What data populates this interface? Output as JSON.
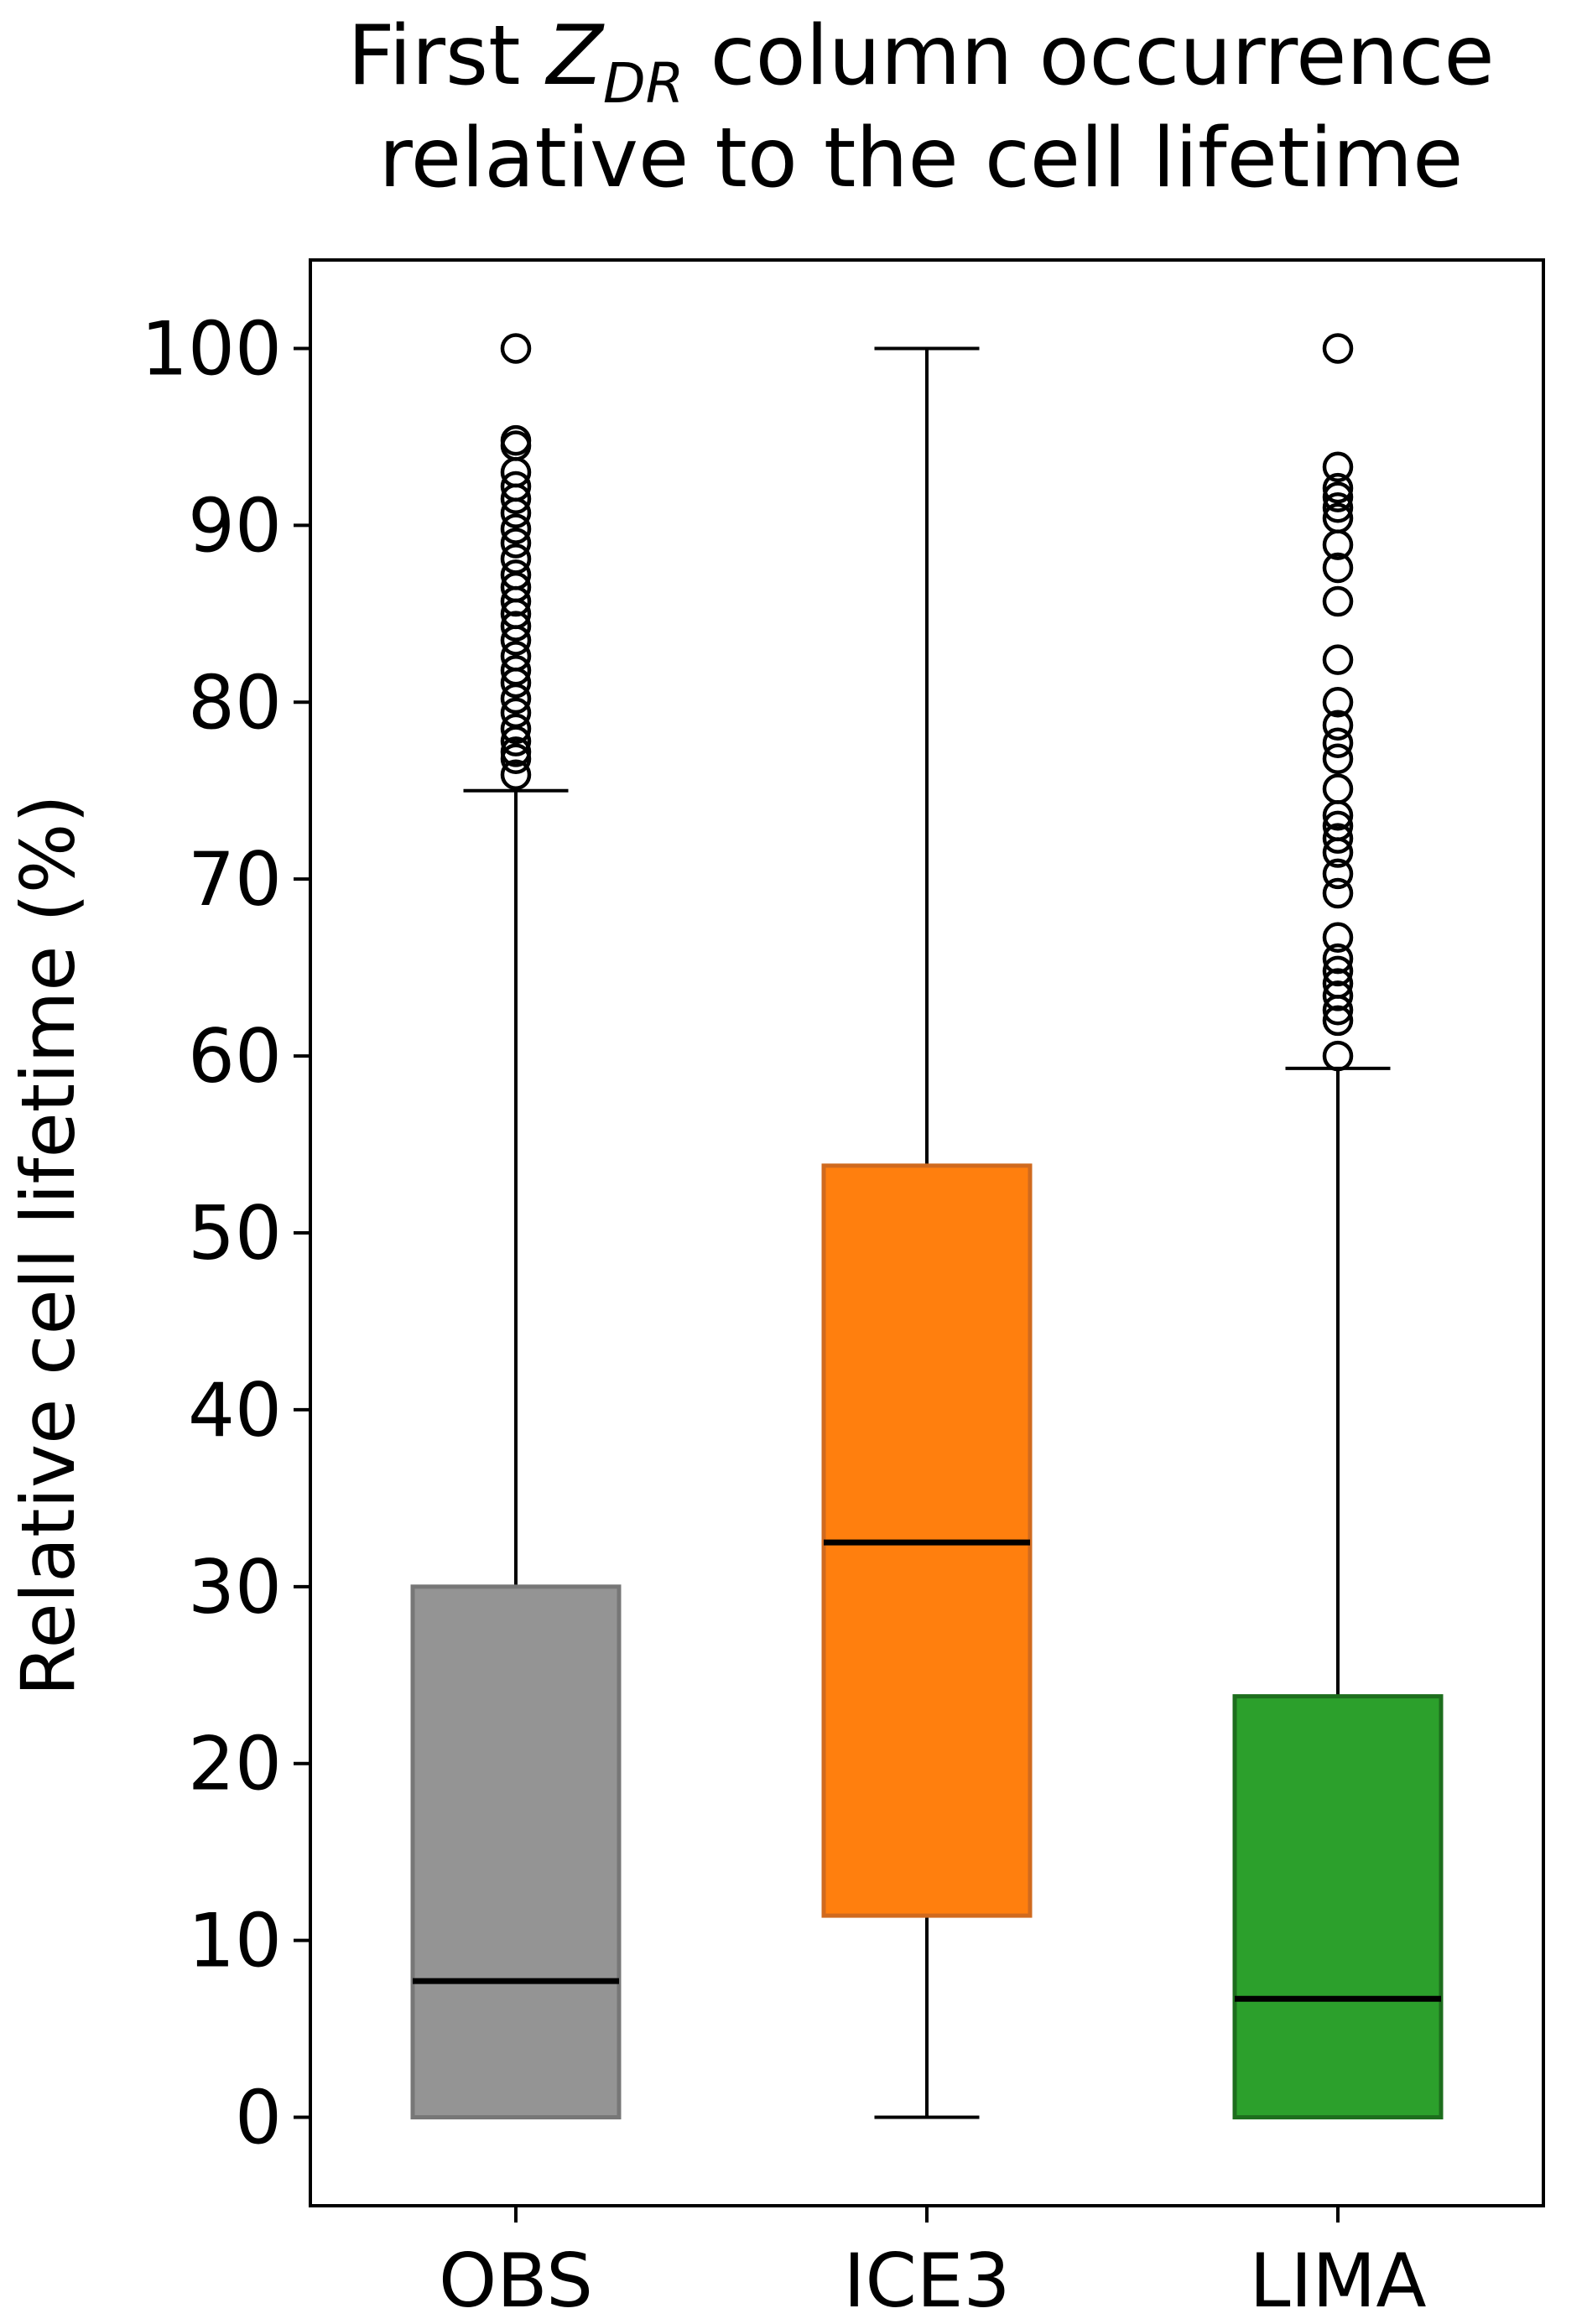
{
  "chart_data": {
    "type": "box",
    "title_line1": {
      "before": "First ",
      "z": "Z",
      "sub": "DR",
      "after": " column occurrence"
    },
    "title_line2": "relative to the cell lifetime",
    "xlabel": "",
    "ylabel": "Relative cell lifetime (%)",
    "ylim": [
      -5,
      105
    ],
    "yticks": [
      "0",
      "10",
      "20",
      "30",
      "40",
      "50",
      "60",
      "70",
      "80",
      "90",
      "100"
    ],
    "categories": [
      "OBS",
      "ICE3",
      "LIMA"
    ],
    "series": [
      {
        "name": "OBS",
        "color": "#949494",
        "edge": "#777777",
        "q1": 0,
        "median": 7.7,
        "q3": 30.0,
        "whisker_low": 0,
        "whisker_high": 75.0,
        "outliers": [
          75.9,
          76.8,
          77.2,
          77.8,
          78.5,
          79.4,
          80.2,
          81.1,
          81.8,
          82.6,
          83.5,
          84.3,
          85.0,
          85.7,
          86.5,
          87.2,
          88.1,
          89.0,
          89.8,
          90.7,
          91.5,
          92.2,
          93.0,
          94.5,
          94.8,
          100.0
        ]
      },
      {
        "name": "ICE3",
        "color": "#ff7f0e",
        "edge": "#d06a1e",
        "q1": 11.4,
        "median": 32.5,
        "q3": 53.8,
        "whisker_low": 0,
        "whisker_high": 100.0,
        "outliers": []
      },
      {
        "name": "LIMA",
        "color": "#2ca02c",
        "edge": "#1d6e1d",
        "q1": 0,
        "median": 6.7,
        "q3": 23.8,
        "whisker_low": 0,
        "whisker_high": 59.3,
        "outliers": [
          60.0,
          62.0,
          62.6,
          63.4,
          64.1,
          64.8,
          65.5,
          66.7,
          69.2,
          70.3,
          71.5,
          72.3,
          73.0,
          73.6,
          75.1,
          76.8,
          77.7,
          78.7,
          80.0,
          82.4,
          85.7,
          87.6,
          88.9,
          90.4,
          91.0,
          91.6,
          92.1,
          93.3,
          100.0
        ]
      }
    ]
  }
}
